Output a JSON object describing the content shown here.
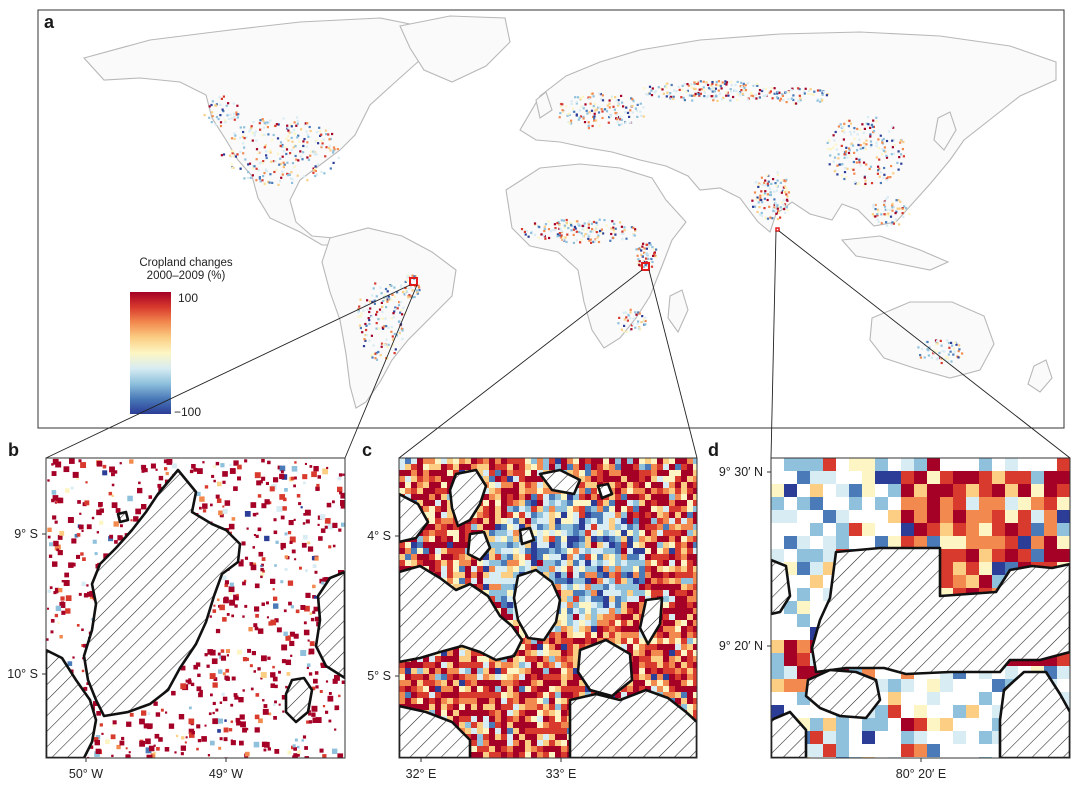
{
  "panels": {
    "a": {
      "letter": "a",
      "legend": {
        "title_line1": "Cropland changes",
        "title_line2": "2000–2009 (%)",
        "max_label": "100",
        "min_label": "−100",
        "scale_colors": [
          "#2b3d97",
          "#4a7ab8",
          "#8fc1dd",
          "#d8ecf3",
          "#fdf6c4",
          "#fbce84",
          "#f28a4f",
          "#d83a2d",
          "#a50026"
        ]
      }
    },
    "b": {
      "letter": "b",
      "y_ticks": [
        "9° S",
        "10° S"
      ],
      "x_ticks": [
        "50° W",
        "49° W"
      ]
    },
    "c": {
      "letter": "c",
      "y_ticks": [
        "4° S",
        "5° S"
      ],
      "x_ticks": [
        "32° E",
        "33° E"
      ]
    },
    "d": {
      "letter": "d",
      "y_ticks": [
        "9° 30′ N",
        "9° 20′ N"
      ],
      "x_ticks": [
        "80° 20′ E"
      ]
    }
  },
  "colors": {
    "gain": "#a50026",
    "loss": "#2b3d97",
    "border": "#b8b8b8",
    "highlight_box": "#e31a1c"
  }
}
